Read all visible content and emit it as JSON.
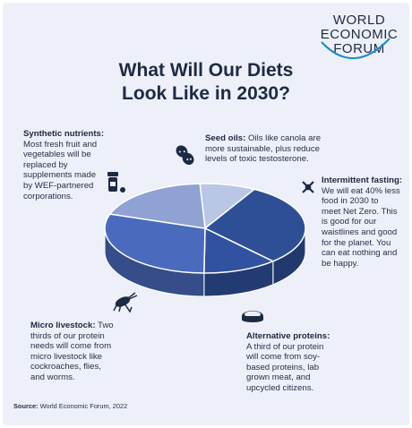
{
  "logo": {
    "line1": "WORLD",
    "line2": "ECONOMIC",
    "line3": "FORUM"
  },
  "title_line1": "What Will Our Diets",
  "title_line2": "Look Like in 2030?",
  "chart_data": {
    "type": "pie",
    "title": "What Will Our Diets Look Like in 2030?",
    "slices": [
      {
        "name": "Seed oils",
        "value": 9,
        "color": "#b9c6e6"
      },
      {
        "name": "Intermittent fasting",
        "value": 30,
        "color": "#2e4f96"
      },
      {
        "name": "Alternative proteins",
        "value": 12,
        "color": "#3052a0"
      },
      {
        "name": "Micro livestock",
        "value": 30,
        "color": "#4a6bbd"
      },
      {
        "name": "Synthetic nutrients",
        "value": 19,
        "color": "#8fa2d3"
      }
    ]
  },
  "annotations": {
    "synthetic": {
      "label": "Synthetic nutrients:",
      "lines": [
        "Most fresh fruit and",
        "vegetables will be",
        "replaced by",
        "supplements made",
        "by WEF-partnered",
        "corporations."
      ]
    },
    "seed": {
      "label": "Seed oils:",
      "first": " Oils like canola are",
      "lines": [
        "more sustainable, plus reduce",
        "levels of toxic testosterone."
      ]
    },
    "fasting": {
      "label": "Intermittent fasting:",
      "lines": [
        "We will eat 40% less",
        "food in 2030 to",
        "meet Net Zero. This",
        "is good for our",
        "waistlines and good",
        "for the planet. You",
        "can eat nothing and",
        "be happy."
      ]
    },
    "micro": {
      "label": "Micro livestock:",
      "first": " Two",
      "lines": [
        "thirds of our protein",
        "needs will come from",
        "micro livestock like",
        "cockroaches, flies,",
        "and worms."
      ]
    },
    "alt": {
      "label": "Alternative proteins:",
      "lines": [
        "A third of our protein",
        "will come from soy-",
        "based proteins, lab",
        "grown meat, and",
        "upcycled citizens."
      ]
    }
  },
  "source": {
    "label": "Source:",
    "text": " World Economic Forum, 2022"
  }
}
